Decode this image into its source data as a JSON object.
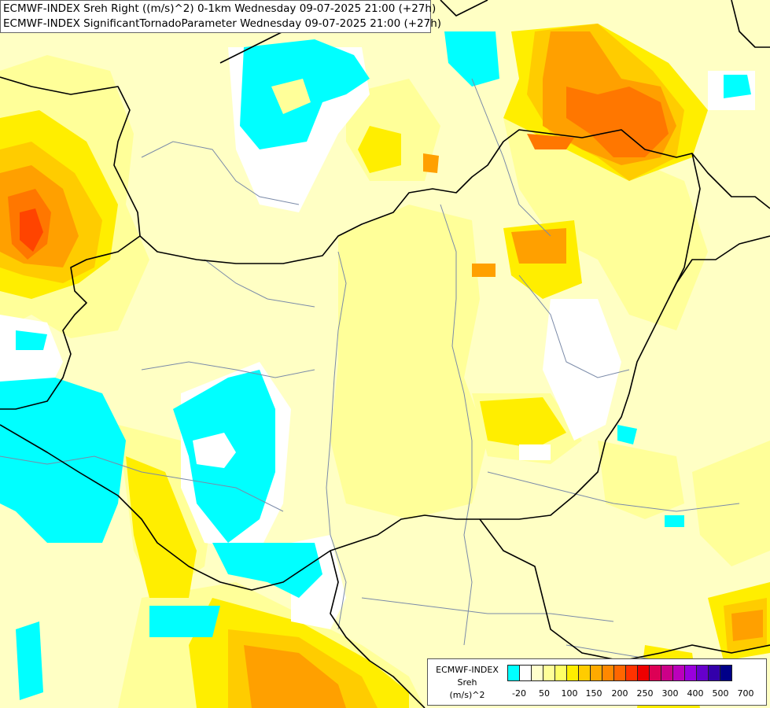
{
  "header": {
    "line1": "ECMWF-INDEX Sreh Right ((m/s)^2) 0-1km Wednesday 09-07-2025 21:00 (+27h)",
    "line2": "ECMWF-INDEX SignificantTornadoParameter Wednesday 09-07-2025 21:00 (+27h)"
  },
  "legend": {
    "title": "ECMWF-INDEX",
    "variable": "Sreh",
    "unit": "(m/s)^2",
    "colors": [
      "#00ffff",
      "#ffffff",
      "#ffffcc",
      "#ffff99",
      "#ffff66",
      "#ffee00",
      "#ffcc00",
      "#ffaa00",
      "#ff8800",
      "#ff6600",
      "#ff3300",
      "#ee0000",
      "#dd0055",
      "#cc0088",
      "#bb00bb",
      "#9900dd",
      "#6600cc",
      "#3300aa",
      "#000088"
    ],
    "ticks": [
      "-20",
      "50",
      "100",
      "150",
      "200",
      "250",
      "300",
      "400",
      "500",
      "700"
    ]
  },
  "colors": {
    "cyan": "#00ffff",
    "white": "#ffffff",
    "pale": "#ffffc4",
    "light_yellow": "#ffff99",
    "yellow": "#ffee00",
    "amber": "#ffcc00",
    "orange": "#ffa000",
    "deep_orange": "#ff7700",
    "red_orange": "#ff4400",
    "border": "#000000",
    "river": "#7a8aa8"
  }
}
